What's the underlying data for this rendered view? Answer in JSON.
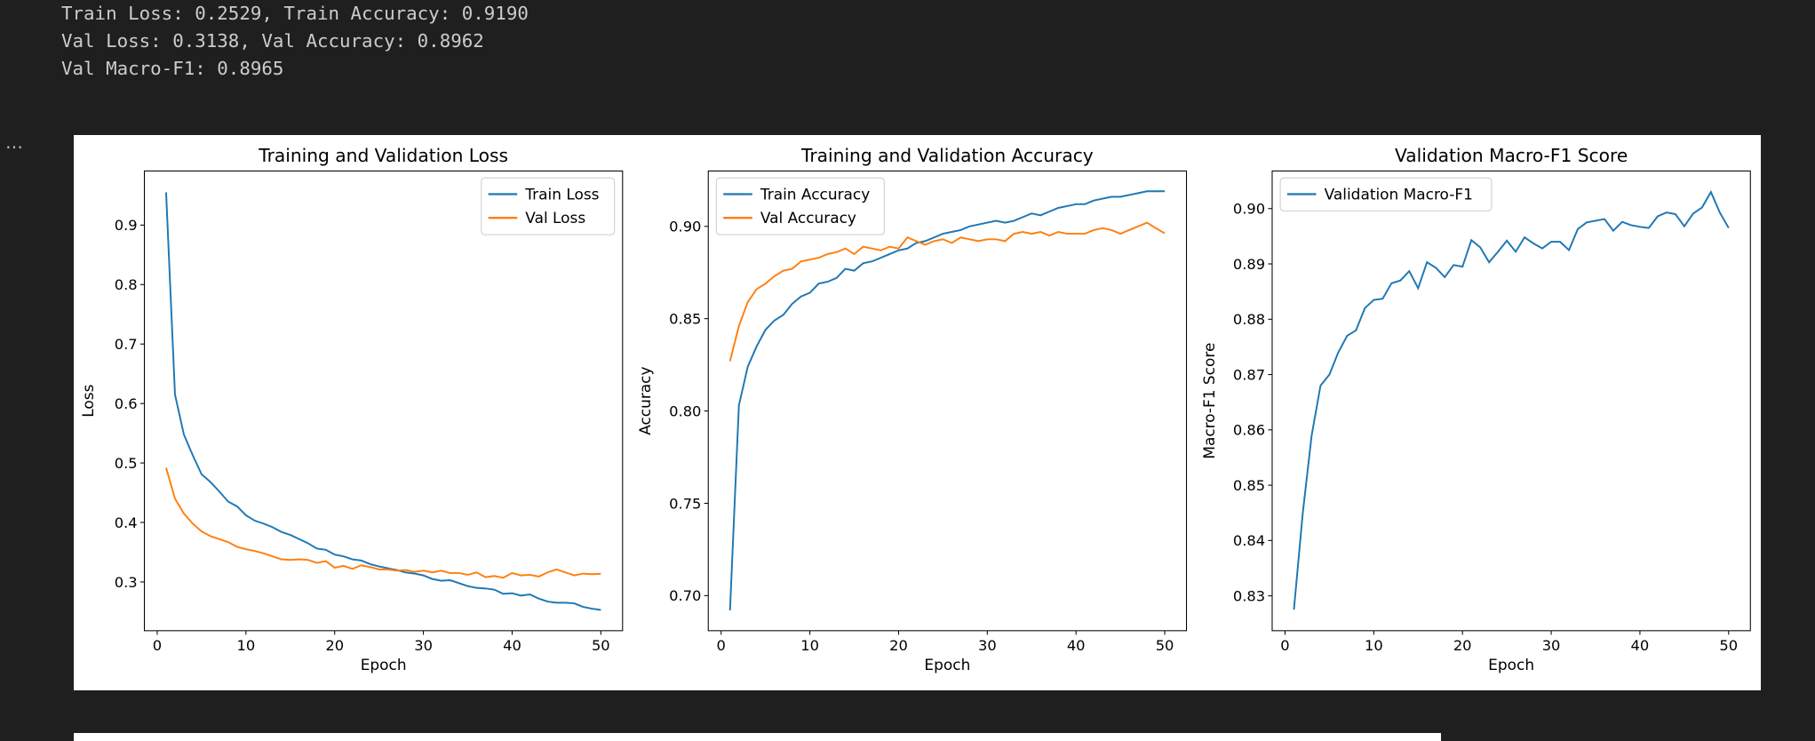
{
  "output": {
    "lines": [
      "Train Loss: 0.2529, Train Accuracy: 0.9190",
      "Val Loss: 0.3138, Val Accuracy: 0.8962",
      "Val Macro-F1: 0.8965"
    ],
    "cell_menu": "…"
  },
  "chart_data": [
    {
      "type": "line",
      "title": "Training and Validation Loss",
      "xlabel": "Epoch",
      "ylabel": "Loss",
      "legend": "upper right",
      "grid": false,
      "x": [
        1,
        2,
        3,
        4,
        5,
        6,
        7,
        8,
        9,
        10,
        11,
        12,
        13,
        14,
        15,
        16,
        17,
        18,
        19,
        20,
        21,
        22,
        23,
        24,
        25,
        26,
        27,
        28,
        29,
        30,
        31,
        32,
        33,
        34,
        35,
        36,
        37,
        38,
        39,
        40,
        41,
        42,
        43,
        44,
        45,
        46,
        47,
        48,
        49,
        50
      ],
      "xlim": [
        -1.45,
        52.45
      ],
      "xticks": [
        0,
        10,
        20,
        30,
        40,
        50
      ],
      "ylim": [
        0.218,
        0.991
      ],
      "yticks": [
        0.3,
        0.4,
        0.5,
        0.6,
        0.7,
        0.8,
        0.9
      ],
      "series": [
        {
          "name": "Train Loss",
          "color": "#1f77b4",
          "values": [
            0.955,
            0.615,
            0.548,
            0.513,
            0.481,
            0.468,
            0.452,
            0.435,
            0.427,
            0.412,
            0.403,
            0.398,
            0.392,
            0.384,
            0.379,
            0.372,
            0.365,
            0.356,
            0.354,
            0.346,
            0.343,
            0.338,
            0.336,
            0.33,
            0.326,
            0.323,
            0.32,
            0.316,
            0.314,
            0.311,
            0.305,
            0.302,
            0.303,
            0.298,
            0.293,
            0.29,
            0.289,
            0.287,
            0.28,
            0.281,
            0.277,
            0.279,
            0.272,
            0.267,
            0.265,
            0.265,
            0.264,
            0.258,
            0.255,
            0.2529
          ]
        },
        {
          "name": "Val Loss",
          "color": "#ff7f0e",
          "values": [
            0.492,
            0.44,
            0.415,
            0.398,
            0.385,
            0.377,
            0.372,
            0.367,
            0.359,
            0.355,
            0.352,
            0.348,
            0.343,
            0.338,
            0.337,
            0.338,
            0.337,
            0.332,
            0.335,
            0.324,
            0.327,
            0.322,
            0.328,
            0.325,
            0.321,
            0.321,
            0.319,
            0.32,
            0.317,
            0.319,
            0.316,
            0.319,
            0.315,
            0.315,
            0.312,
            0.316,
            0.308,
            0.31,
            0.307,
            0.315,
            0.311,
            0.312,
            0.309,
            0.316,
            0.321,
            0.316,
            0.311,
            0.314,
            0.313,
            0.3138
          ]
        }
      ]
    },
    {
      "type": "line",
      "title": "Training and Validation Accuracy",
      "xlabel": "Epoch",
      "ylabel": "Accuracy",
      "legend": "upper left",
      "grid": false,
      "x": [
        1,
        2,
        3,
        4,
        5,
        6,
        7,
        8,
        9,
        10,
        11,
        12,
        13,
        14,
        15,
        16,
        17,
        18,
        19,
        20,
        21,
        22,
        23,
        24,
        25,
        26,
        27,
        28,
        29,
        30,
        31,
        32,
        33,
        34,
        35,
        36,
        37,
        38,
        39,
        40,
        41,
        42,
        43,
        44,
        45,
        46,
        47,
        48,
        49,
        50
      ],
      "xlim": [
        -1.45,
        52.45
      ],
      "xticks": [
        0,
        10,
        20,
        30,
        40,
        50
      ],
      "ylim": [
        0.681,
        0.93
      ],
      "yticks": [
        {
          "value": 0.7,
          "label": "0.70"
        },
        0.75,
        {
          "value": 0.8,
          "label": "0.80"
        },
        0.85,
        {
          "value": 0.9,
          "label": "0.90"
        }
      ],
      "series": [
        {
          "name": "Train Accuracy",
          "color": "#1f77b4",
          "values": [
            0.692,
            0.803,
            0.824,
            0.835,
            0.844,
            0.849,
            0.852,
            0.858,
            0.862,
            0.864,
            0.869,
            0.87,
            0.872,
            0.877,
            0.876,
            0.88,
            0.881,
            0.883,
            0.885,
            0.887,
            0.888,
            0.891,
            0.892,
            0.894,
            0.896,
            0.897,
            0.898,
            0.9,
            0.901,
            0.902,
            0.903,
            0.902,
            0.903,
            0.905,
            0.907,
            0.906,
            0.908,
            0.91,
            0.911,
            0.912,
            0.912,
            0.914,
            0.915,
            0.916,
            0.916,
            0.917,
            0.918,
            0.919,
            0.919,
            0.919
          ]
        },
        {
          "name": "Val Accuracy",
          "color": "#ff7f0e",
          "values": [
            0.827,
            0.846,
            0.859,
            0.866,
            0.869,
            0.873,
            0.876,
            0.877,
            0.881,
            0.882,
            0.883,
            0.885,
            0.886,
            0.888,
            0.885,
            0.889,
            0.888,
            0.887,
            0.889,
            0.888,
            0.894,
            0.892,
            0.89,
            0.892,
            0.893,
            0.891,
            0.894,
            0.893,
            0.892,
            0.893,
            0.893,
            0.892,
            0.896,
            0.897,
            0.896,
            0.897,
            0.895,
            0.897,
            0.896,
            0.896,
            0.896,
            0.898,
            0.899,
            0.898,
            0.896,
            0.898,
            0.9,
            0.902,
            0.899,
            0.8962
          ]
        }
      ]
    },
    {
      "type": "line",
      "title": "Validation Macro-F1 Score",
      "xlabel": "Epoch",
      "ylabel": "Macro-F1 Score",
      "legend": "upper left",
      "grid": false,
      "x": [
        1,
        2,
        3,
        4,
        5,
        6,
        7,
        8,
        9,
        10,
        11,
        12,
        13,
        14,
        15,
        16,
        17,
        18,
        19,
        20,
        21,
        22,
        23,
        24,
        25,
        26,
        27,
        28,
        29,
        30,
        31,
        32,
        33,
        34,
        35,
        36,
        37,
        38,
        39,
        40,
        41,
        42,
        43,
        44,
        45,
        46,
        47,
        48,
        49,
        50
      ],
      "xlim": [
        -1.45,
        52.45
      ],
      "xticks": [
        0,
        10,
        20,
        30,
        40,
        50
      ],
      "ylim": [
        0.8237,
        0.9068
      ],
      "yticks": [
        0.83,
        0.84,
        0.85,
        0.86,
        0.87,
        0.88,
        0.89,
        {
          "value": 0.9,
          "label": "0.90"
        }
      ],
      "series": [
        {
          "name": "Validation Macro-F1",
          "color": "#1f77b4",
          "values": [
            0.8275,
            0.845,
            0.859,
            0.868,
            0.87,
            0.874,
            0.877,
            0.878,
            0.882,
            0.8835,
            0.8837,
            0.8865,
            0.887,
            0.8887,
            0.8856,
            0.8903,
            0.8893,
            0.8876,
            0.8898,
            0.8895,
            0.8943,
            0.893,
            0.8903,
            0.8922,
            0.8942,
            0.8922,
            0.8948,
            0.8937,
            0.8928,
            0.894,
            0.894,
            0.8925,
            0.8963,
            0.8975,
            0.8978,
            0.8981,
            0.896,
            0.8976,
            0.897,
            0.8967,
            0.8965,
            0.8986,
            0.8993,
            0.899,
            0.8968,
            0.8991,
            0.9002,
            0.903,
            0.8993,
            0.8965
          ]
        }
      ]
    }
  ]
}
